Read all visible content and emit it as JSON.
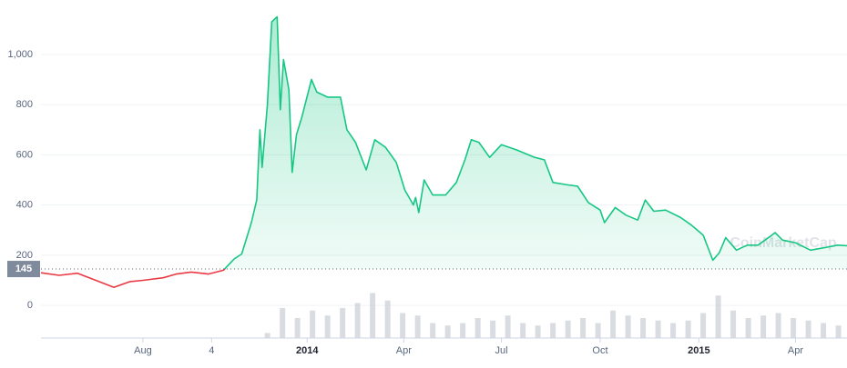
{
  "chart_data": {
    "type": "line",
    "baseline": 145,
    "watermark": "CoinMarketCap",
    "xlim": [
      "2013-04-28",
      "2015-05-19"
    ],
    "xticks": [
      {
        "value": "2013-08-01",
        "label": "Aug"
      },
      {
        "value": "2013-10-04",
        "label": "4"
      },
      {
        "value": "2014-01-01",
        "label": "2014"
      },
      {
        "value": "2014-04-01",
        "label": "Apr"
      },
      {
        "value": "2014-07-01",
        "label": "Jul"
      },
      {
        "value": "2014-10-01",
        "label": "Oct"
      },
      {
        "value": "2015-01-01",
        "label": "2015"
      },
      {
        "value": "2015-04-01",
        "label": "Apr"
      }
    ],
    "ylim": [
      -130,
      1217
    ],
    "yticks": [
      {
        "value": 1000,
        "label": "1,000"
      },
      800,
      600,
      400,
      200,
      0
    ],
    "grid": true,
    "colors": {
      "above": "#16c784",
      "below": "#ea3943",
      "volume": "#c9ced6"
    },
    "x": [
      "2013-04-28",
      "2013-05-15",
      "2013-06-01",
      "2013-06-15",
      "2013-07-05",
      "2013-07-20",
      "2013-08-01",
      "2013-08-20",
      "2013-09-01",
      "2013-09-15",
      "2013-10-01",
      "2013-10-15",
      "2013-10-25",
      "2013-11-01",
      "2013-11-10",
      "2013-11-15",
      "2013-11-18",
      "2013-11-20",
      "2013-11-25",
      "2013-11-29",
      "2013-12-04",
      "2013-12-07",
      "2013-12-10",
      "2013-12-15",
      "2013-12-18",
      "2013-12-22",
      "2013-12-27",
      "2014-01-05",
      "2014-01-10",
      "2014-01-20",
      "2014-02-01",
      "2014-02-07",
      "2014-02-15",
      "2014-02-25",
      "2014-03-05",
      "2014-03-15",
      "2014-03-25",
      "2014-04-02",
      "2014-04-10",
      "2014-04-12",
      "2014-04-15",
      "2014-04-20",
      "2014-04-28",
      "2014-05-10",
      "2014-05-20",
      "2014-05-28",
      "2014-06-03",
      "2014-06-10",
      "2014-06-20",
      "2014-07-01",
      "2014-07-15",
      "2014-08-01",
      "2014-08-10",
      "2014-08-18",
      "2014-09-01",
      "2014-09-10",
      "2014-09-20",
      "2014-10-01",
      "2014-10-05",
      "2014-10-15",
      "2014-10-25",
      "2014-11-05",
      "2014-11-12",
      "2014-11-20",
      "2014-12-01",
      "2014-12-15",
      "2014-12-25",
      "2015-01-05",
      "2015-01-14",
      "2015-01-20",
      "2015-01-26",
      "2015-02-05",
      "2015-02-15",
      "2015-02-25",
      "2015-03-10",
      "2015-03-13",
      "2015-03-20",
      "2015-04-01",
      "2015-04-15",
      "2015-04-28",
      "2015-05-10",
      "2015-05-19"
    ],
    "values": [
      130,
      120,
      128,
      105,
      72,
      95,
      100,
      110,
      125,
      133,
      125,
      140,
      185,
      205,
      330,
      420,
      700,
      550,
      800,
      1130,
      1150,
      780,
      980,
      860,
      530,
      680,
      750,
      900,
      850,
      830,
      830,
      700,
      650,
      540,
      660,
      630,
      570,
      460,
      400,
      430,
      370,
      500,
      440,
      440,
      490,
      580,
      660,
      650,
      590,
      640,
      620,
      590,
      580,
      490,
      480,
      475,
      410,
      380,
      330,
      390,
      360,
      340,
      420,
      375,
      380,
      350,
      320,
      280,
      180,
      210,
      270,
      220,
      240,
      240,
      280,
      290,
      260,
      250,
      220,
      230,
      240,
      238
    ],
    "volume": {
      "x": [
        "2013-11-25",
        "2013-12-09",
        "2013-12-23",
        "2014-01-06",
        "2014-01-20",
        "2014-02-03",
        "2014-02-17",
        "2014-03-03",
        "2014-03-17",
        "2014-03-31",
        "2014-04-14",
        "2014-04-28",
        "2014-05-12",
        "2014-05-26",
        "2014-06-09",
        "2014-06-23",
        "2014-07-07",
        "2014-07-21",
        "2014-08-04",
        "2014-08-18",
        "2014-09-01",
        "2014-09-15",
        "2014-09-29",
        "2014-10-13",
        "2014-10-27",
        "2014-11-10",
        "2014-11-24",
        "2014-12-08",
        "2014-12-22",
        "2015-01-05",
        "2015-01-19",
        "2015-02-02",
        "2015-02-16",
        "2015-03-02",
        "2015-03-16",
        "2015-03-30",
        "2015-04-13",
        "2015-04-27",
        "2015-05-11"
      ],
      "values": [
        10,
        60,
        40,
        55,
        45,
        60,
        70,
        90,
        75,
        50,
        45,
        30,
        25,
        30,
        40,
        35,
        45,
        30,
        25,
        30,
        35,
        40,
        30,
        55,
        45,
        40,
        35,
        30,
        35,
        50,
        85,
        55,
        40,
        45,
        50,
        40,
        35,
        30,
        25
      ]
    }
  }
}
